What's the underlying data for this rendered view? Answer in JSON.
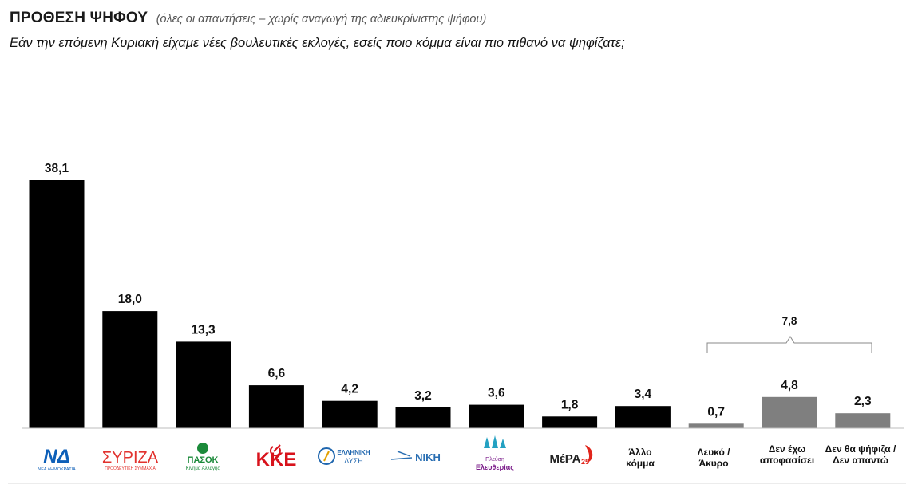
{
  "header": {
    "title": "ΠΡΟΘΕΣΗ ΨΗΦΟΥ",
    "subtitle": "(όλες οι απαντήσεις – χωρίς αναγωγή της αδιευκρίνιστης ψήφου)",
    "question": "Εάν την επόμενη Κυριακή είχαμε νέες βουλευτικές εκλογές, εσείς ποιο κόμμα είναι πιο πιθανό να ψηφίζατε;"
  },
  "chart_data": {
    "type": "bar",
    "title": "ΠΡΟΘΕΣΗ ΨΗΦΟΥ",
    "xlabel": "",
    "ylabel": "",
    "ylim": [
      0,
      40
    ],
    "grid": false,
    "legend": "none",
    "categories": [
      "ΝΔ",
      "ΣΥΡΙΖΑ",
      "ΠΑΣΟΚ",
      "ΚΚΕ",
      "ΕΛΛΗΝΙΚΗ ΛΥΣΗ",
      "ΝΙΚΗ",
      "Πλεύση Ελευθερίας",
      "ΜέΡΑ25",
      "Άλλο κόμμα",
      "Λευκό / Άκυρο",
      "Δεν έχω αποφασίσει",
      "Δεν θα ψήφιζα / Δεν απαντώ"
    ],
    "values": [
      38.1,
      18.0,
      13.3,
      6.6,
      4.2,
      3.2,
      3.6,
      1.8,
      3.4,
      0.7,
      4.8,
      2.3
    ],
    "value_labels": [
      "38,1",
      "18,0",
      "13,3",
      "6,6",
      "4,2",
      "3,2",
      "3,6",
      "1,8",
      "3,4",
      "0,7",
      "4,8",
      "2,3"
    ],
    "bar_colors": [
      "#000000",
      "#000000",
      "#000000",
      "#000000",
      "#000000",
      "#000000",
      "#000000",
      "#000000",
      "#000000",
      "#7f7f7f",
      "#7f7f7f",
      "#7f7f7f"
    ],
    "annotations": [
      {
        "text": "7,8",
        "value": 7.8,
        "from_index": 9,
        "to_index": 11
      }
    ]
  },
  "category_labels": {
    "allo": [
      "Άλλο",
      "κόμμα"
    ],
    "lefko": [
      "Λευκό /",
      "Άκυρο"
    ],
    "den_ehw": [
      "Δεν έχω",
      "αποφασίσει"
    ],
    "den_tha": [
      "Δεν θα ψήφιζα /",
      "Δεν απαντώ"
    ]
  },
  "logos": {
    "nd": {
      "name": "ΝΔ",
      "caption": "ΝΕΑ ΔΗΜΟΚΡΑΤΙΑ",
      "color": "#0d5fb8"
    },
    "syriza": {
      "name": "ΣΥΡΙΖΑ",
      "caption": "ΠΡΟΟΔΕΥΤΙΚΗ ΣΥΜΜΑΧΙΑ",
      "color": "#e2322e"
    },
    "pasok": {
      "name": "ΠΑΣΟΚ",
      "caption": "Κίνημα Αλλαγής",
      "color": "#1b8a3a"
    },
    "kke": {
      "name": "ΚΚΕ",
      "color": "#d8121b"
    },
    "elliniki_lysi": {
      "name_line1": "ΕΛΛΗΝΙΚΗ",
      "name_line2": "ΛΥΣΗ",
      "color": "#1f66ae"
    },
    "niki": {
      "name": "ΝΙΚΗ",
      "color": "#2a6fb3"
    },
    "plefsi": {
      "line1": "Πλεύση",
      "line2": "Ελευθερίας",
      "color": "#7b1c8a",
      "accent": "#24a1c2"
    },
    "mera25": {
      "name": "ΜέΡΑ",
      "number": "25",
      "color": "#e1251b"
    }
  }
}
